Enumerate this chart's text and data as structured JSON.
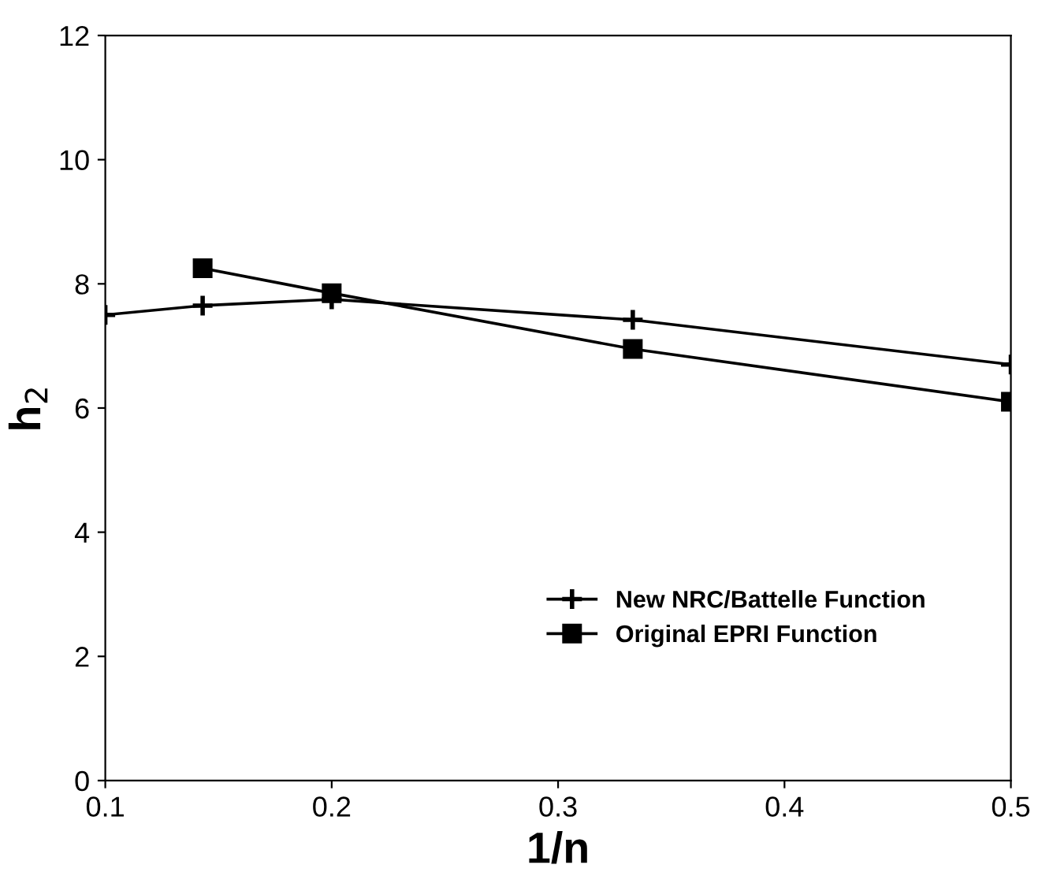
{
  "chart_data": {
    "type": "line",
    "xlabel": "1/n",
    "ylabel": "h$_{2}$",
    "xlim": [
      0.1,
      0.5
    ],
    "xticks": [
      0.1,
      0.2,
      0.3,
      0.4,
      0.5
    ],
    "ylim": [
      0,
      12
    ],
    "yticks": [
      0,
      2,
      4,
      6,
      8,
      10,
      12
    ],
    "grid": false,
    "legend": "bottom right",
    "series": [
      {
        "name": "New NRC/Battelle Function",
        "color": "#000000",
        "marker": "cross",
        "x": [
          0.1,
          0.143,
          0.2,
          0.333,
          0.5
        ],
        "values": [
          7.5,
          7.65,
          7.75,
          7.42,
          6.7
        ]
      },
      {
        "name": "Original EPRI Function",
        "color": "#000000",
        "marker": "square",
        "x": [
          0.143,
          0.2,
          0.333,
          0.5
        ],
        "values": [
          8.25,
          7.85,
          6.95,
          6.1
        ]
      }
    ]
  }
}
